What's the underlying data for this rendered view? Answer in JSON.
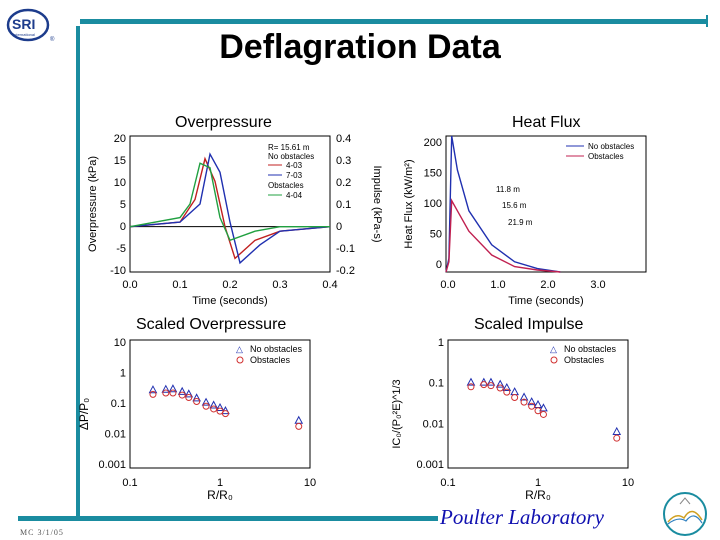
{
  "slide": {
    "title": "Deflagration Data",
    "logo_text": "SRI",
    "logo_subtext": "International",
    "footer_lab": "Poulter Laboratory",
    "footer_code": "MC 3/1/05",
    "accent_color": "#1a8ca0",
    "footer_color": "#1010b0"
  },
  "panels": {
    "overpressure": {
      "title": "Overpressure",
      "xlabel": "Time (seconds)",
      "ylabel": "Overpressure (kPa)",
      "y2label": "Impulse (kPa-s)",
      "xticks": [
        "0.0",
        "0.1",
        "0.2",
        "0.3",
        "0.4"
      ],
      "yticks": [
        "20",
        "15",
        "10",
        "5",
        "0",
        "-5",
        "-10"
      ],
      "y2ticks": [
        "0.4",
        "0.3",
        "0.2",
        "0.1",
        "0",
        "-0.1",
        "-0.2"
      ],
      "legend": [
        "R= 15.61 m",
        "No obstacles",
        "4-03",
        "7-03",
        "Obstacles",
        "4-04"
      ]
    },
    "heatflux": {
      "title": "Heat Flux",
      "xlabel": "Time (seconds)",
      "ylabel": "Heat Flux (kW/m²)",
      "xticks": [
        "0.0",
        "1.0",
        "2.0",
        "3.0"
      ],
      "yticks": [
        "200",
        "150",
        "100",
        "50",
        "0"
      ],
      "legend": [
        "No obstacles",
        "Obstacles"
      ],
      "annotations": [
        "11.8 m",
        "15.6 m",
        "21.9 m"
      ]
    },
    "scaled_overpressure": {
      "title": "Scaled Overpressure",
      "xlabel": "R/R₀",
      "ylabel": "ΔP/P₀",
      "xticks": [
        "0.1",
        "1",
        "10"
      ],
      "yticks": [
        "10",
        "1",
        "0.1",
        "0.01",
        "0.001"
      ],
      "legend": [
        "No obstacles",
        "Obstacles"
      ]
    },
    "scaled_impulse": {
      "title": "Scaled Impulse",
      "xlabel": "R/R₀",
      "ylabel": "IC₀/(P₀²E)^1/3",
      "xticks": [
        "0.1",
        "1",
        "10"
      ],
      "yticks": [
        "1",
        "0.1",
        "0.01",
        "0.001"
      ],
      "legend": [
        "No obstacles",
        "Obstacles"
      ]
    }
  },
  "chart_data": [
    {
      "type": "line",
      "title": "Overpressure",
      "xlabel": "Time (seconds)",
      "ylabel": "Overpressure (kPa)",
      "xlim": [
        0,
        0.4
      ],
      "ylim": [
        -10,
        20
      ],
      "series": [
        {
          "name": "4-03",
          "color": "#c02020",
          "x": [
            0,
            0.1,
            0.13,
            0.15,
            0.17,
            0.19,
            0.21,
            0.25,
            0.3,
            0.4
          ],
          "y": [
            0,
            1,
            6,
            15,
            10,
            0,
            -7,
            -3,
            -1,
            0
          ]
        },
        {
          "name": "7-03",
          "color": "#2030b0",
          "x": [
            0,
            0.1,
            0.14,
            0.16,
            0.18,
            0.2,
            0.22,
            0.26,
            0.3,
            0.4
          ],
          "y": [
            0,
            1,
            5,
            16,
            12,
            1,
            -8,
            -4,
            -1,
            0
          ]
        },
        {
          "name": "4-04",
          "color": "#20a040",
          "x": [
            0,
            0.1,
            0.12,
            0.14,
            0.16,
            0.18,
            0.2,
            0.25,
            0.3,
            0.4
          ],
          "y": [
            0,
            2,
            5,
            14,
            13,
            2,
            -3,
            -1,
            0,
            0
          ]
        }
      ]
    },
    {
      "type": "line",
      "title": "Heat Flux",
      "xlabel": "Time (seconds)",
      "ylabel": "Heat Flux (kW/m²)",
      "xlim": [
        0,
        3.5
      ],
      "ylim": [
        0,
        200
      ],
      "series": [
        {
          "name": "No obstacles",
          "color": "#2030b0",
          "x": [
            0,
            0.05,
            0.1,
            0.2,
            0.4,
            0.8,
            1.2,
            1.6,
            2.0
          ],
          "y": [
            0,
            20,
            200,
            150,
            90,
            40,
            15,
            5,
            0
          ]
        },
        {
          "name": "Obstacles",
          "color": "#c02050",
          "x": [
            0,
            0.05,
            0.1,
            0.2,
            0.4,
            0.8,
            1.2,
            1.6,
            2.0
          ],
          "y": [
            0,
            15,
            105,
            90,
            60,
            25,
            8,
            3,
            0
          ]
        }
      ]
    },
    {
      "type": "scatter",
      "title": "Scaled Overpressure",
      "xlabel": "R/R₀",
      "ylabel": "ΔP/P₀",
      "xlim": [
        0.1,
        10
      ],
      "ylim": [
        0.001,
        10
      ],
      "log": true,
      "series": [
        {
          "name": "No obstacles",
          "color": "#2030b0",
          "x": [
            0.18,
            0.25,
            0.3,
            0.38,
            0.45,
            0.55,
            0.7,
            0.85,
            1.0,
            1.15,
            7.5
          ],
          "y": [
            0.27,
            0.28,
            0.29,
            0.24,
            0.2,
            0.15,
            0.11,
            0.09,
            0.075,
            0.06,
            0.03
          ]
        },
        {
          "name": "Obstacles",
          "color": "#d03030",
          "x": [
            0.18,
            0.25,
            0.3,
            0.38,
            0.45,
            0.55,
            0.7,
            0.85,
            1.0,
            1.15,
            7.5
          ],
          "y": [
            0.2,
            0.22,
            0.22,
            0.19,
            0.16,
            0.12,
            0.085,
            0.07,
            0.06,
            0.05,
            0.02
          ]
        }
      ]
    },
    {
      "type": "scatter",
      "title": "Scaled Impulse",
      "xlabel": "R/R₀",
      "ylabel": "IC₀/(P₀²E)^1/3",
      "xlim": [
        0.1,
        10
      ],
      "ylim": [
        0.001,
        1
      ],
      "log": true,
      "series": [
        {
          "name": "No obstacles",
          "color": "#2030b0",
          "x": [
            0.18,
            0.25,
            0.3,
            0.38,
            0.45,
            0.55,
            0.7,
            0.85,
            1.0,
            1.15,
            7.5
          ],
          "y": [
            0.1,
            0.1,
            0.1,
            0.09,
            0.075,
            0.06,
            0.045,
            0.035,
            0.03,
            0.025,
            0.007
          ]
        },
        {
          "name": "Obstacles",
          "color": "#d03030",
          "x": [
            0.18,
            0.25,
            0.3,
            0.38,
            0.45,
            0.55,
            0.7,
            0.85,
            1.0,
            1.15,
            7.5
          ],
          "y": [
            0.08,
            0.09,
            0.085,
            0.075,
            0.06,
            0.045,
            0.035,
            0.028,
            0.022,
            0.018,
            0.005
          ]
        }
      ]
    }
  ]
}
